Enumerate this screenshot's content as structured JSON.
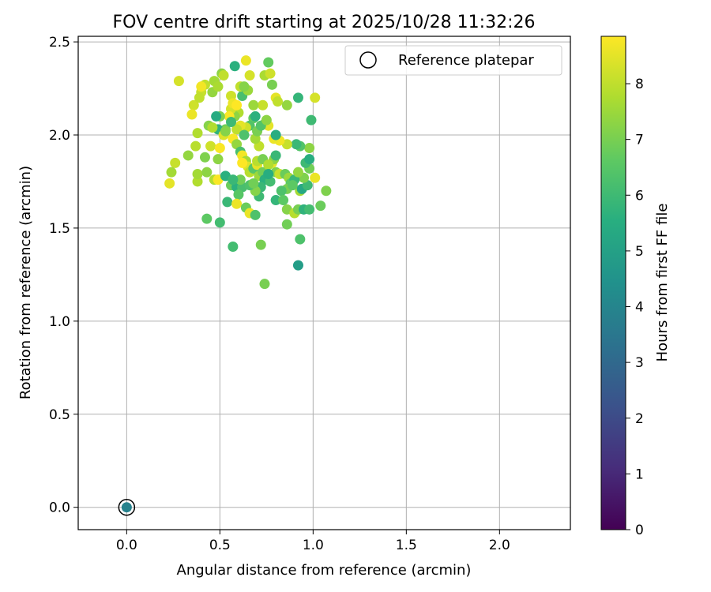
{
  "chart_data": {
    "type": "scatter",
    "title": "FOV centre drift starting at 2025/10/28 11:32:26",
    "xlabel": "Angular distance from reference (arcmin)",
    "ylabel": "Rotation from reference (arcmin)",
    "xlim": [
      -0.26,
      2.38
    ],
    "ylim": [
      -0.12,
      2.53
    ],
    "xticks": [
      0.0,
      0.5,
      1.0,
      1.5,
      2.0
    ],
    "xtick_labels": [
      "0.0",
      "0.5",
      "1.0",
      "1.5",
      "2.0"
    ],
    "yticks": [
      0.0,
      0.5,
      1.0,
      1.5,
      2.0,
      2.5
    ],
    "ytick_labels": [
      "0.0",
      "0.5",
      "1.0",
      "1.5",
      "2.0",
      "2.5"
    ],
    "grid": true,
    "legend": {
      "position": "top-right",
      "entries": [
        "Reference platepar"
      ]
    },
    "colorbar": {
      "label": "Hours from first FF file",
      "colormap": "viridis",
      "range": [
        0,
        8.85
      ],
      "ticks": [
        0,
        1,
        2,
        3,
        4,
        5,
        6,
        7,
        8
      ],
      "tick_labels": [
        "0",
        "1",
        "2",
        "3",
        "4",
        "5",
        "6",
        "7",
        "8"
      ]
    },
    "reference_point": {
      "x": 0.0,
      "y": 0.0,
      "hours": 3.9
    },
    "series": [
      {
        "name": "FOV centre drift",
        "points": [
          [
            0.28,
            2.29,
            8.3
          ],
          [
            0.4,
            2.23,
            8.1
          ],
          [
            0.36,
            2.16,
            8.2
          ],
          [
            0.35,
            2.11,
            8.6
          ],
          [
            0.39,
            2.2,
            8.0
          ],
          [
            0.38,
            2.01,
            7.8
          ],
          [
            0.44,
            2.05,
            7.2
          ],
          [
            0.47,
            2.29,
            7.6
          ],
          [
            0.46,
            2.23,
            7.4
          ],
          [
            0.49,
            2.26,
            7.7
          ],
          [
            0.42,
            2.27,
            8.0
          ],
          [
            0.4,
            2.26,
            8.7
          ],
          [
            0.51,
            2.33,
            7.3
          ],
          [
            0.52,
            2.32,
            8.0
          ],
          [
            0.56,
            2.21,
            8.2
          ],
          [
            0.58,
            2.37,
            5.6
          ],
          [
            0.64,
            2.4,
            8.6
          ],
          [
            0.66,
            2.32,
            8.3
          ],
          [
            0.76,
            2.39,
            6.7
          ],
          [
            0.74,
            2.32,
            7.7
          ],
          [
            0.77,
            2.33,
            8.2
          ],
          [
            0.78,
            2.27,
            7.0
          ],
          [
            0.8,
            2.2,
            8.5
          ],
          [
            0.81,
            2.18,
            8.0
          ],
          [
            0.92,
            2.2,
            5.8
          ],
          [
            1.01,
            2.2,
            8.3
          ],
          [
            0.99,
            2.08,
            6.0
          ],
          [
            0.86,
            2.16,
            7.4
          ],
          [
            0.73,
            2.16,
            8.1
          ],
          [
            0.68,
            2.16,
            7.5
          ],
          [
            0.62,
            2.21,
            6.2
          ],
          [
            0.65,
            2.24,
            7.5
          ],
          [
            0.6,
            2.12,
            7.8
          ],
          [
            0.58,
            2.1,
            7.3
          ],
          [
            0.56,
            2.14,
            8.3
          ],
          [
            0.55,
            2.1,
            8.8
          ],
          [
            0.5,
            2.1,
            7.1
          ],
          [
            0.48,
            2.1,
            5.4
          ],
          [
            0.53,
            2.03,
            6.9
          ],
          [
            0.49,
            2.03,
            5.7
          ],
          [
            0.46,
            2.04,
            7.8
          ],
          [
            0.52,
            2.0,
            8.4
          ],
          [
            0.45,
            1.94,
            8.2
          ],
          [
            0.5,
            1.93,
            8.8
          ],
          [
            0.37,
            1.94,
            7.9
          ],
          [
            0.33,
            1.89,
            7.4
          ],
          [
            0.42,
            1.88,
            7.1
          ],
          [
            0.49,
            1.87,
            7.3
          ],
          [
            0.26,
            1.85,
            8.1
          ],
          [
            0.24,
            1.8,
            7.6
          ],
          [
            0.23,
            1.74,
            8.5
          ],
          [
            0.38,
            1.75,
            7.8
          ],
          [
            0.38,
            1.79,
            7.6
          ],
          [
            0.43,
            1.8,
            7.3
          ],
          [
            0.47,
            1.76,
            7.8
          ],
          [
            0.49,
            1.76,
            8.8
          ],
          [
            0.53,
            1.78,
            5.6
          ],
          [
            0.56,
            1.73,
            6.8
          ],
          [
            0.59,
            1.72,
            5.6
          ],
          [
            0.62,
            1.72,
            6.2
          ],
          [
            0.6,
            1.68,
            6.5
          ],
          [
            0.54,
            1.64,
            5.9
          ],
          [
            0.59,
            1.63,
            8.6
          ],
          [
            0.64,
            1.61,
            6.8
          ],
          [
            0.66,
            1.58,
            8.6
          ],
          [
            0.69,
            1.57,
            6.3
          ],
          [
            0.43,
            1.55,
            6.6
          ],
          [
            0.5,
            1.53,
            6.1
          ],
          [
            0.57,
            1.4,
            6.1
          ],
          [
            0.72,
            1.41,
            7.0
          ],
          [
            0.74,
            1.2,
            7.0
          ],
          [
            0.92,
            1.3,
            4.9
          ],
          [
            0.93,
            1.44,
            6.3
          ],
          [
            0.86,
            1.52,
            6.9
          ],
          [
            0.86,
            1.6,
            7.2
          ],
          [
            0.9,
            1.58,
            7.9
          ],
          [
            0.92,
            1.6,
            7.0
          ],
          [
            0.95,
            1.6,
            5.7
          ],
          [
            0.98,
            1.6,
            6.1
          ],
          [
            1.04,
            1.62,
            6.8
          ],
          [
            1.07,
            1.7,
            7.1
          ],
          [
            0.93,
            1.7,
            7.6
          ],
          [
            0.94,
            1.71,
            5.3
          ],
          [
            0.97,
            1.73,
            6.0
          ],
          [
            0.95,
            1.77,
            7.1
          ],
          [
            0.98,
            1.82,
            6.9
          ],
          [
            0.96,
            1.85,
            6.0
          ],
          [
            0.98,
            1.87,
            5.5
          ],
          [
            0.98,
            1.93,
            7.3
          ],
          [
            0.93,
            1.94,
            6.4
          ],
          [
            0.91,
            1.95,
            5.9
          ],
          [
            0.86,
            1.95,
            8.1
          ],
          [
            0.82,
            1.97,
            8.7
          ],
          [
            0.79,
            1.98,
            8.6
          ],
          [
            0.8,
            2.0,
            5.5
          ],
          [
            0.74,
            2.06,
            6.9
          ],
          [
            0.76,
            2.05,
            8.5
          ],
          [
            0.68,
            2.09,
            6.7
          ],
          [
            0.69,
            2.1,
            5.6
          ],
          [
            0.66,
            2.05,
            6.4
          ],
          [
            0.64,
            2.04,
            8.2
          ],
          [
            0.61,
            2.05,
            8.5
          ],
          [
            0.59,
            2.03,
            8.0
          ],
          [
            0.57,
            1.98,
            8.8
          ],
          [
            0.59,
            1.95,
            7.4
          ],
          [
            0.61,
            1.91,
            6.2
          ],
          [
            0.62,
            1.89,
            8.7
          ],
          [
            0.64,
            1.86,
            7.6
          ],
          [
            0.65,
            1.83,
            8.4
          ],
          [
            0.66,
            1.8,
            7.9
          ],
          [
            0.68,
            1.82,
            6.5
          ],
          [
            0.7,
            1.84,
            8.5
          ],
          [
            0.71,
            1.78,
            7.5
          ],
          [
            0.73,
            1.8,
            6.9
          ],
          [
            0.74,
            1.76,
            5.6
          ],
          [
            0.72,
            1.72,
            5.9
          ],
          [
            0.77,
            1.75,
            6.1
          ],
          [
            0.8,
            1.8,
            7.1
          ],
          [
            0.82,
            1.79,
            8.1
          ],
          [
            0.85,
            1.79,
            6.8
          ],
          [
            0.87,
            1.77,
            7.5
          ],
          [
            0.88,
            1.74,
            6.6
          ],
          [
            0.9,
            1.76,
            5.9
          ],
          [
            0.92,
            1.8,
            7.4
          ],
          [
            0.86,
            1.71,
            7.0
          ],
          [
            0.83,
            1.7,
            6.3
          ],
          [
            0.8,
            1.65,
            5.8
          ],
          [
            0.71,
            1.67,
            6.0
          ],
          [
            0.69,
            1.7,
            7.2
          ],
          [
            0.66,
            1.73,
            6.3
          ],
          [
            0.61,
            1.76,
            6.9
          ],
          [
            0.62,
            1.85,
            8.9
          ],
          [
            0.7,
            1.86,
            7.9
          ],
          [
            0.73,
            1.87,
            7.0
          ],
          [
            0.78,
            1.85,
            8.5
          ],
          [
            0.79,
            1.87,
            7.3
          ],
          [
            0.71,
            1.94,
            8.0
          ],
          [
            0.69,
            1.98,
            7.6
          ],
          [
            0.7,
            2.02,
            7.0
          ],
          [
            0.72,
            2.05,
            6.4
          ],
          [
            0.75,
            2.08,
            7.3
          ],
          [
            0.8,
            1.89,
            5.9
          ],
          [
            1.01,
            1.77,
            8.6
          ],
          [
            0.53,
            2.02,
            7.2
          ],
          [
            0.56,
            2.07,
            6.0
          ],
          [
            0.57,
            2.17,
            8.6
          ],
          [
            0.59,
            2.16,
            8.9
          ],
          [
            0.61,
            2.26,
            8.0
          ],
          [
            0.63,
            2.26,
            7.2
          ],
          [
            0.63,
            2.0,
            6.3
          ],
          [
            0.68,
            1.74,
            6.9
          ],
          [
            0.76,
            1.84,
            7.8
          ],
          [
            0.84,
            1.65,
            6.6
          ],
          [
            0.89,
            1.73,
            6.6
          ],
          [
            0.76,
            1.79,
            5.5
          ],
          [
            0.57,
            1.76,
            5.9
          ]
        ]
      }
    ]
  }
}
